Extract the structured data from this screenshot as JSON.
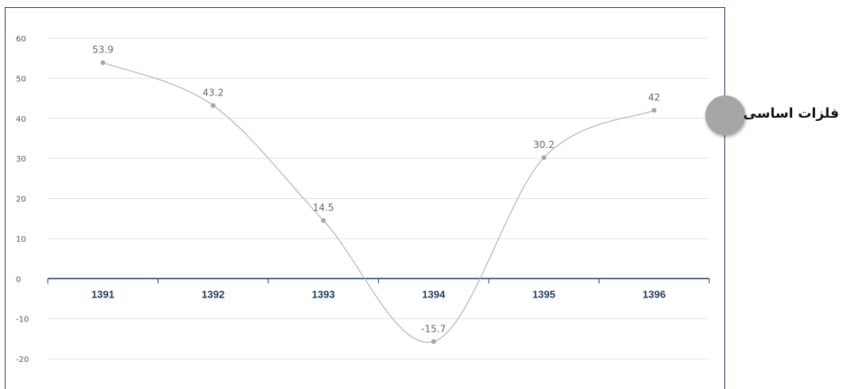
{
  "chart_data": {
    "type": "line",
    "categories": [
      "1391",
      "1392",
      "1393",
      "1394",
      "1395",
      "1396"
    ],
    "series": [
      {
        "name": "فلزات اساسی",
        "values": [
          53.9,
          43.2,
          14.5,
          -15.7,
          30.2,
          42
        ],
        "data_labels": [
          "53.9",
          "43.2",
          "14.5",
          "-15.7",
          "30.2",
          "42"
        ]
      }
    ],
    "y_ticks": [
      "60",
      "50",
      "40",
      "30",
      "20",
      "10",
      "0",
      "-10",
      "-20"
    ],
    "ylim": [
      -20,
      60
    ],
    "grid": true,
    "legend_position": "right",
    "colors": {
      "line": "#b3b3b3",
      "point": "#a6a6a6",
      "axis": "#1f3a5f",
      "category_text": "#1f3a5f",
      "legend_dot": "#a6a6a6"
    }
  }
}
